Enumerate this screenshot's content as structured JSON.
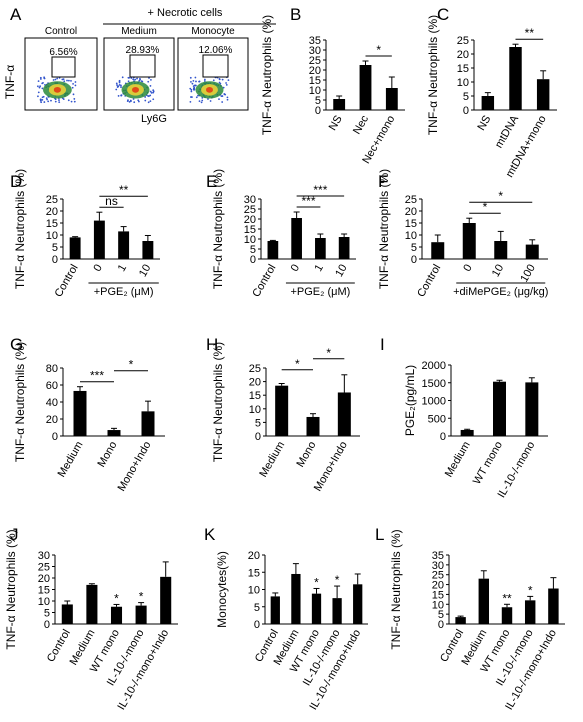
{
  "figure": {
    "flow": {
      "label": "A",
      "group_header": "+ Necrotic cells",
      "y_axis": "TNF-α",
      "x_axis": "Ly6G",
      "plots": [
        {
          "title": "Control",
          "gate": "6.56%"
        },
        {
          "title": "Medium",
          "gate": "28.93%"
        },
        {
          "title": "Monocyte",
          "gate": "12.06%"
        }
      ]
    }
  },
  "chart_data": [
    {
      "id": "B",
      "type": "bar",
      "ylabel": "TNF-α Neutrophils (%)",
      "categories": [
        "NS",
        "Nec",
        "Nec+mono"
      ],
      "values": [
        5.5,
        22.5,
        11
      ],
      "errors": [
        1.5,
        2,
        5.5
      ],
      "ylim": [
        0,
        35
      ],
      "yticks": [
        "0",
        "5",
        "10",
        "15",
        "20",
        "25",
        "30",
        "35"
      ],
      "rotate": true,
      "sig": [
        {
          "from": 1,
          "to": 2,
          "text": "*"
        }
      ]
    },
    {
      "id": "C",
      "type": "bar",
      "ylabel": "TNF-α Neutrophils (%)",
      "categories": [
        "NS",
        "mtDNA",
        "mtDNA+mono"
      ],
      "values": [
        5,
        22.5,
        11
      ],
      "errors": [
        1.2,
        1,
        3
      ],
      "ylim": [
        0,
        25
      ],
      "yticks": [
        "0",
        "5",
        "10",
        "15",
        "20",
        "25"
      ],
      "rotate": true,
      "sig": [
        {
          "from": 1,
          "to": 2,
          "text": "**"
        }
      ]
    },
    {
      "id": "D",
      "type": "bar",
      "ylabel": "TNF-α Neutrophils (%)",
      "categories": [
        "Control",
        "0",
        "1",
        "10"
      ],
      "values": [
        9,
        16,
        11.5,
        7.5
      ],
      "errors": [
        0.3,
        3.5,
        2,
        2.3
      ],
      "ylim": [
        0,
        25
      ],
      "yticks": [
        "0",
        "5",
        "10",
        "15",
        "20",
        "25"
      ],
      "rotate": true,
      "xnote": "+PGE₂ (μM)",
      "xnote_from": 1,
      "xnote_to": 3,
      "sig": [
        {
          "from": 1,
          "to": 2,
          "text": "ns"
        },
        {
          "from": 1,
          "to": 3,
          "text": "**"
        }
      ]
    },
    {
      "id": "E",
      "type": "bar",
      "ylabel": "TNF-α Neutrophils (%)",
      "categories": [
        "Control",
        "0",
        "1",
        "10"
      ],
      "values": [
        9,
        20.5,
        10.5,
        11
      ],
      "errors": [
        0.3,
        3,
        2,
        1.5
      ],
      "ylim": [
        0,
        30
      ],
      "yticks": [
        "0",
        "5",
        "10",
        "15",
        "20",
        "25",
        "30"
      ],
      "rotate": true,
      "xnote": "+PGE₂ (μM)",
      "xnote_from": 1,
      "xnote_to": 3,
      "sig": [
        {
          "from": 1,
          "to": 2,
          "text": "***"
        },
        {
          "from": 1,
          "to": 3,
          "text": "***"
        }
      ]
    },
    {
      "id": "F",
      "type": "bar",
      "ylabel": "TNF-α Neutrophils (%)",
      "categories": [
        "Control",
        "0",
        "10",
        "100"
      ],
      "values": [
        7,
        15,
        7.5,
        6
      ],
      "errors": [
        3,
        2,
        4,
        2
      ],
      "ylim": [
        0,
        25
      ],
      "yticks": [
        "0",
        "5",
        "10",
        "15",
        "20",
        "25"
      ],
      "rotate": true,
      "xnote": "+diMePGE₂ (μg/kg)",
      "xnote_from": 1,
      "xnote_to": 3,
      "sig": [
        {
          "from": 1,
          "to": 2,
          "text": "*"
        },
        {
          "from": 1,
          "to": 3,
          "text": "*"
        }
      ]
    },
    {
      "id": "G",
      "type": "bar",
      "ylabel": "TNF-α Neutrophils (%)",
      "categories": [
        "Medium",
        "Mono",
        "Mono+Indo"
      ],
      "values": [
        53,
        7,
        29
      ],
      "errors": [
        5,
        2,
        12
      ],
      "ylim": [
        0,
        80
      ],
      "yticks": [
        "0",
        "20",
        "40",
        "60",
        "80"
      ],
      "rotate": true,
      "sig": [
        {
          "from": 0,
          "to": 1,
          "text": "***"
        },
        {
          "from": 1,
          "to": 2,
          "text": "*"
        }
      ]
    },
    {
      "id": "H",
      "type": "bar",
      "ylabel": "TNF-α Neutrophils (%)",
      "categories": [
        "Medium",
        "Mono",
        "Mono+Indo"
      ],
      "values": [
        18.5,
        7,
        16
      ],
      "errors": [
        0.8,
        1.2,
        6.5
      ],
      "ylim": [
        0,
        25
      ],
      "yticks": [
        "0",
        "5",
        "10",
        "15",
        "20",
        "25"
      ],
      "rotate": true,
      "sig": [
        {
          "from": 0,
          "to": 1,
          "text": "*"
        },
        {
          "from": 1,
          "to": 2,
          "text": "*"
        }
      ]
    },
    {
      "id": "I",
      "type": "bar",
      "ylabel": "PGE₂(pg/mL)",
      "categories": [
        "Medium",
        "WT mono",
        "IL-10-/-mono"
      ],
      "values": [
        170,
        1530,
        1510
      ],
      "errors": [
        20,
        40,
        130
      ],
      "ylim": [
        0,
        2000
      ],
      "yticks": [
        "0",
        "500",
        "1000",
        "1500",
        "2000"
      ],
      "rotate": true,
      "sig": []
    },
    {
      "id": "J",
      "type": "bar",
      "ylabel": "TNF-α Neutrophils (%)",
      "categories": [
        "Control",
        "Medium",
        "WT mono",
        "IL-10-/-mono",
        "IL-10-/-mono+Indo"
      ],
      "values": [
        8.5,
        17,
        7.5,
        8,
        20.5
      ],
      "errors": [
        1.5,
        0.5,
        1,
        1.3,
        6.5
      ],
      "ylim": [
        0,
        30
      ],
      "yticks": [
        "0",
        "5",
        "10",
        "15",
        "20",
        "25",
        "30"
      ],
      "rotate": true,
      "stars": [
        null,
        null,
        "*",
        "*",
        null
      ],
      "sig": []
    },
    {
      "id": "K",
      "type": "bar",
      "ylabel": "Monocytes(%)",
      "categories": [
        "Control",
        "Medium",
        "WT mono",
        "IL-10-/-mono",
        "IL-10-/-mono+Indo"
      ],
      "values": [
        8,
        14.5,
        8.8,
        7.5,
        11.5
      ],
      "errors": [
        1,
        3,
        1.5,
        3.5,
        3
      ],
      "ylim": [
        0,
        20
      ],
      "yticks": [
        "0",
        "5",
        "10",
        "15",
        "20"
      ],
      "rotate": true,
      "stars": [
        null,
        null,
        "*",
        "*",
        null
      ],
      "sig": []
    },
    {
      "id": "L",
      "type": "bar",
      "ylabel": "TNF-α Neutrophils (%)",
      "categories": [
        "Control",
        "Medium",
        "WT mono",
        "IL-10-/-mono",
        "IL-10-/-mono+Indo"
      ],
      "values": [
        3.5,
        23,
        8.5,
        12,
        18
      ],
      "errors": [
        0.5,
        4,
        1.5,
        2,
        5.5
      ],
      "ylim": [
        0,
        35
      ],
      "yticks": [
        "0",
        "5",
        "10",
        "15",
        "20",
        "25",
        "30",
        "35"
      ],
      "rotate": true,
      "stars": [
        null,
        null,
        "**",
        "*",
        null
      ],
      "sig": []
    }
  ]
}
